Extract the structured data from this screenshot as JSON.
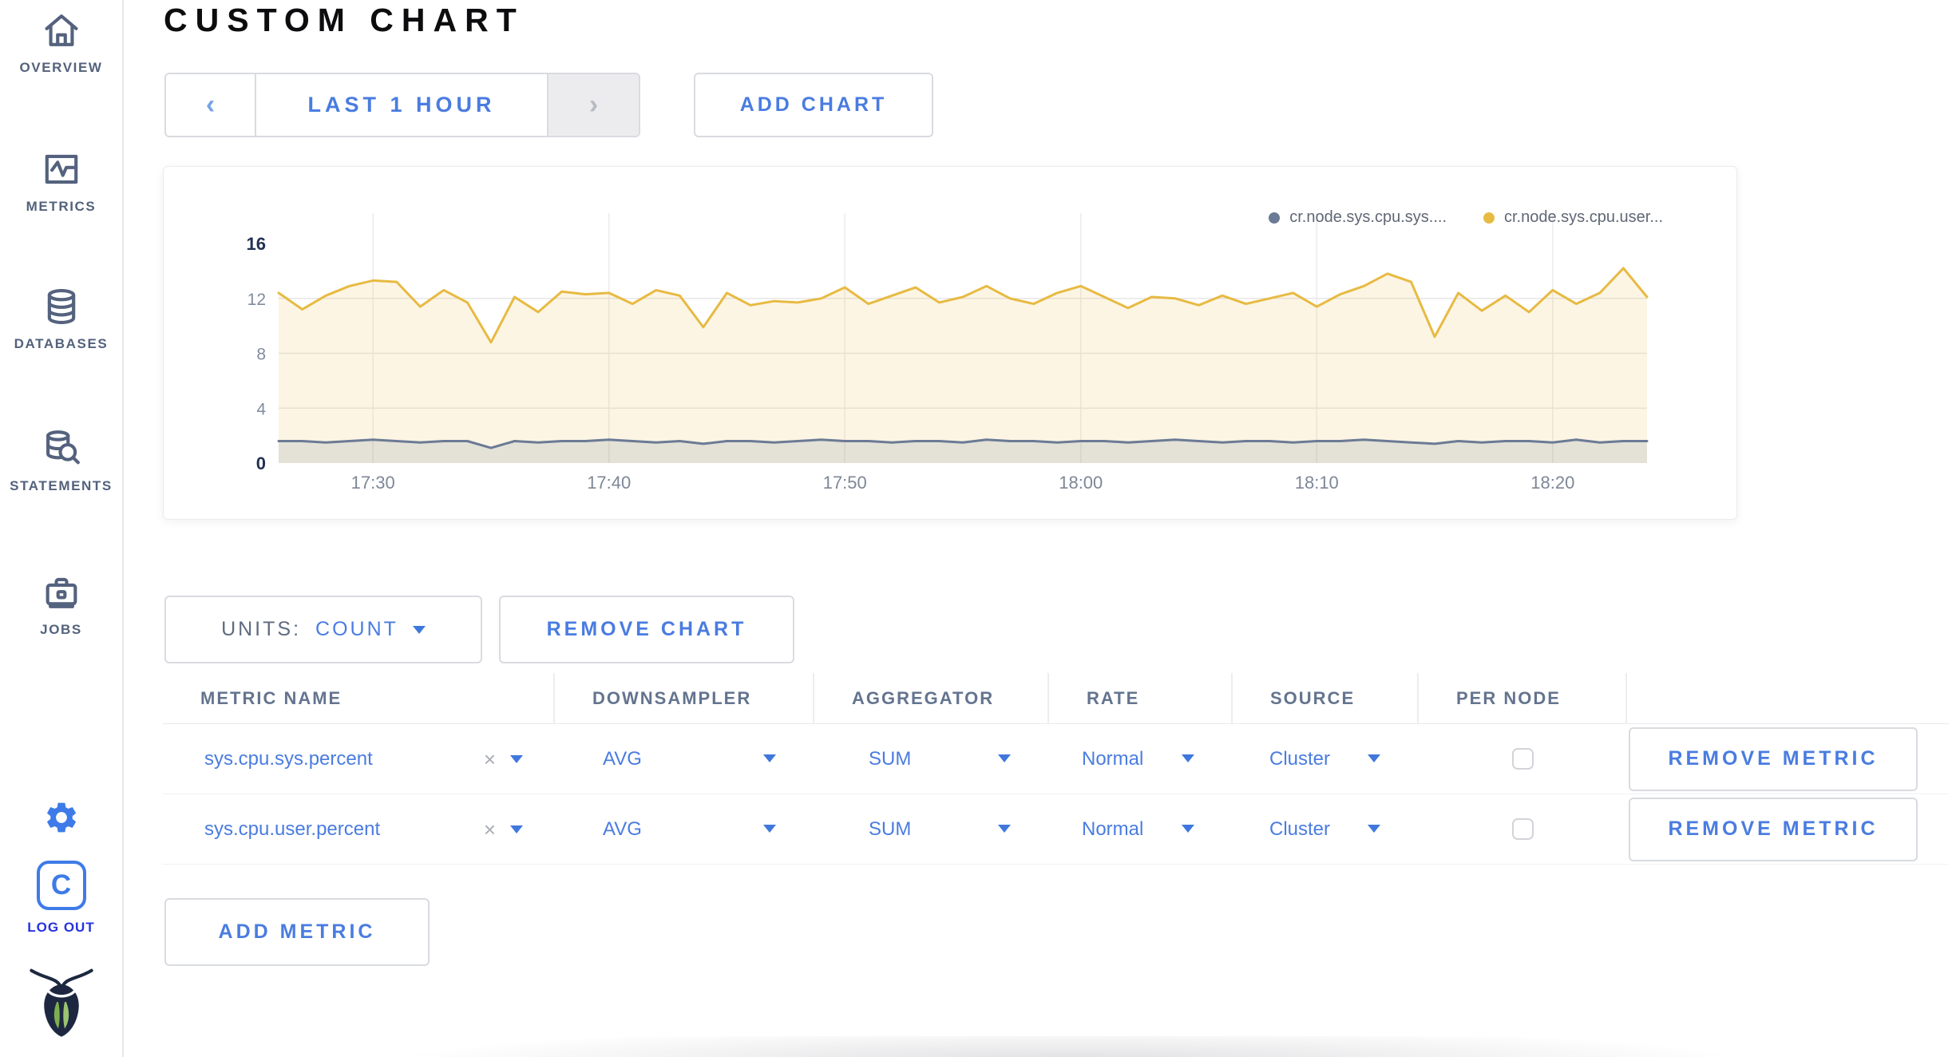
{
  "colors": {
    "accent_blue": "#4a7ce0",
    "icon_blue": "#3e7be8",
    "logout_blue": "#2533e0",
    "sidebar_text": "#53627c",
    "series_yellow": "#e7ba42",
    "series_slate": "#6b7a95"
  },
  "sidebar": {
    "items": [
      {
        "label": "OVERVIEW",
        "icon": "home-icon"
      },
      {
        "label": "METRICS",
        "icon": "metrics-icon"
      },
      {
        "label": "DATABASES",
        "icon": "database-icon"
      },
      {
        "label": "STATEMENTS",
        "icon": "statements-icon"
      },
      {
        "label": "JOBS",
        "icon": "jobs-icon"
      }
    ],
    "avatar_letter": "C",
    "logout_label": "LOG OUT"
  },
  "header": {
    "title": "CUSTOM CHART"
  },
  "controls": {
    "prev_icon": "‹",
    "range_label": "LAST 1 HOUR",
    "next_icon": "›",
    "add_chart": "ADD CHART",
    "units_label": "UNITS:",
    "units_value": "COUNT",
    "remove_chart": "REMOVE CHART",
    "add_metric": "ADD METRIC"
  },
  "chart_data": {
    "type": "line",
    "title": "",
    "xlabel": "",
    "ylabel": "",
    "ylim": [
      0,
      16
    ],
    "y_ticks": [
      0,
      4,
      8,
      12,
      16
    ],
    "x_tick_labels": [
      "17:30",
      "17:40",
      "17:50",
      "18:00",
      "18:10",
      "18:20"
    ],
    "x_tick_indices": [
      4,
      14,
      24,
      34,
      44,
      54
    ],
    "x_start": "17:26",
    "x_step_minutes": 1,
    "grid": true,
    "legend_position": "top-right",
    "series": [
      {
        "name": "cr.node.sys.cpu.sys....",
        "color": "#6b7a95",
        "fill": "rgba(107,122,149,0.16)",
        "values": [
          1.6,
          1.6,
          1.5,
          1.6,
          1.7,
          1.6,
          1.5,
          1.6,
          1.6,
          1.1,
          1.6,
          1.5,
          1.6,
          1.6,
          1.7,
          1.6,
          1.5,
          1.6,
          1.4,
          1.6,
          1.6,
          1.5,
          1.6,
          1.7,
          1.6,
          1.6,
          1.5,
          1.6,
          1.6,
          1.5,
          1.7,
          1.6,
          1.6,
          1.5,
          1.6,
          1.6,
          1.5,
          1.6,
          1.7,
          1.6,
          1.5,
          1.6,
          1.6,
          1.5,
          1.6,
          1.6,
          1.7,
          1.6,
          1.5,
          1.4,
          1.6,
          1.5,
          1.6,
          1.6,
          1.5,
          1.7,
          1.5,
          1.6,
          1.6
        ]
      },
      {
        "name": "cr.node.sys.cpu.user...",
        "color": "#e7ba42",
        "fill": "rgba(231,186,66,0.14)",
        "values": [
          12.4,
          11.2,
          12.2,
          12.9,
          13.3,
          13.2,
          11.4,
          12.6,
          11.7,
          8.8,
          12.1,
          11.0,
          12.5,
          12.3,
          12.4,
          11.6,
          12.6,
          12.2,
          9.9,
          12.4,
          11.5,
          11.8,
          11.7,
          12.0,
          12.8,
          11.6,
          12.2,
          12.8,
          11.7,
          12.1,
          12.9,
          12.0,
          11.6,
          12.4,
          12.9,
          12.1,
          11.3,
          12.1,
          12.0,
          11.5,
          12.2,
          11.6,
          12.0,
          12.4,
          11.4,
          12.3,
          12.9,
          13.8,
          13.2,
          9.2,
          12.4,
          11.1,
          12.2,
          11.0,
          12.6,
          11.6,
          12.4,
          14.2,
          12.1
        ]
      }
    ]
  },
  "table": {
    "headers": [
      "METRIC NAME",
      "DOWNSAMPLER",
      "AGGREGATOR",
      "RATE",
      "SOURCE",
      "PER NODE",
      ""
    ],
    "rows": [
      {
        "metric": "sys.cpu.sys.percent",
        "clear": "×",
        "downsampler": "AVG",
        "aggregator": "SUM",
        "rate": "Normal",
        "source": "Cluster",
        "per_node_checked": false,
        "action": "REMOVE METRIC"
      },
      {
        "metric": "sys.cpu.user.percent",
        "clear": "×",
        "downsampler": "AVG",
        "aggregator": "SUM",
        "rate": "Normal",
        "source": "Cluster",
        "per_node_checked": false,
        "action": "REMOVE METRIC"
      }
    ]
  }
}
